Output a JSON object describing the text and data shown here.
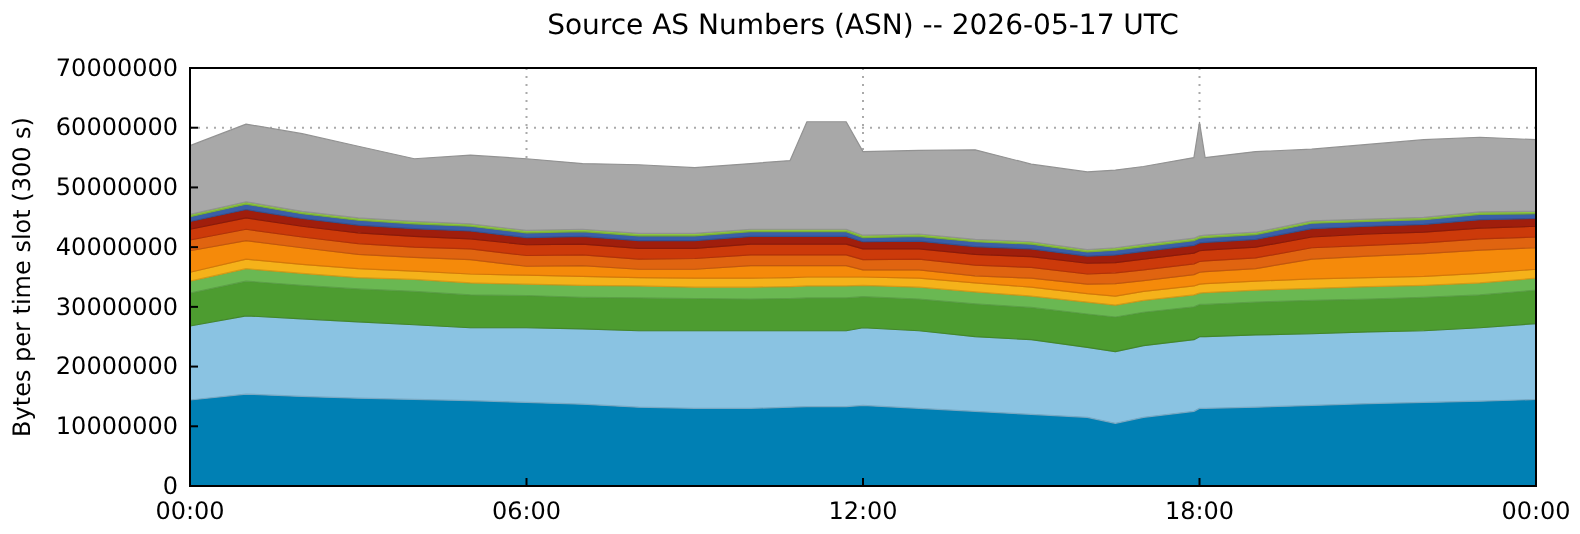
{
  "chart_data": {
    "type": "area",
    "stacked": true,
    "title": "Source AS Numbers (ASN) -- 2026-05-17 UTC",
    "ylabel": "Bytes per time slot (300 s)",
    "x": [
      0,
      1,
      2,
      3,
      4,
      5,
      6,
      7,
      8,
      9,
      10,
      10.7,
      11,
      11.7,
      12,
      13,
      14,
      15,
      16,
      16.5,
      17,
      17.9,
      18,
      18.1,
      19,
      20,
      21,
      22,
      23,
      24
    ],
    "xlim": [
      0,
      24
    ],
    "xticks": [
      {
        "value": 0,
        "label": "00:00"
      },
      {
        "value": 6,
        "label": "06:00"
      },
      {
        "value": 12,
        "label": "12:00"
      },
      {
        "value": 18,
        "label": "18:00"
      },
      {
        "value": 24,
        "label": "00:00"
      }
    ],
    "ylim": [
      0,
      70000000
    ],
    "yticks": [
      0,
      10000000,
      20000000,
      30000000,
      40000000,
      50000000,
      60000000,
      70000000
    ],
    "grid": true,
    "series": [
      {
        "color": "#0080b4",
        "values": [
          14400000.0,
          15400000.0,
          15000000.0,
          14700000.0,
          14500000.0,
          14300000.0,
          14000000.0,
          13700000.0,
          13200000.0,
          13000000.0,
          13000000.0,
          13200000.0,
          13300000.0,
          13300000.0,
          13500000.0,
          13000000.0,
          12500000.0,
          12000000.0,
          11500000.0,
          10500000.0,
          11500000.0,
          12500000.0,
          13000000.0,
          13000000.0,
          13200000.0,
          13500000.0,
          13800000.0,
          14000000.0,
          14200000.0,
          14500000.0
        ]
      },
      {
        "color": "#8ac3e2",
        "values": [
          12400000.0,
          13100000.0,
          13000000.0,
          12800000.0,
          12500000.0,
          12200000.0,
          12500000.0,
          12600000.0,
          12800000.0,
          13000000.0,
          13000000.0,
          12800000.0,
          12700000.0,
          12700000.0,
          13000000.0,
          13000000.0,
          12500000.0,
          12500000.0,
          11700000.0,
          12000000.0,
          12000000.0,
          12000000.0,
          12000000.0,
          12000000.0,
          12100000.0,
          12000000.0,
          12000000.0,
          12000000.0,
          12300000.0,
          12700000.0
        ]
      },
      {
        "color": "#4d9c30",
        "values": [
          5500000.0,
          5800000.0,
          5600000.0,
          5500000.0,
          5600000.0,
          5500000.0,
          5400000.0,
          5300000.0,
          5500000.0,
          5400000.0,
          5300000.0,
          5400000.0,
          5500000.0,
          5500000.0,
          5200000.0,
          5300000.0,
          5500000.0,
          5400000.0,
          5600000.0,
          5800000.0,
          5600000.0,
          5500000.0,
          5400000.0,
          5400000.0,
          5500000.0,
          5600000.0,
          5500000.0,
          5600000.0,
          5500000.0,
          5600000.0
        ]
      },
      {
        "color": "#6ab852",
        "values": [
          2000000.0,
          2100000.0,
          2000000.0,
          1900000.0,
          2000000.0,
          2000000.0,
          1900000.0,
          2000000.0,
          2000000.0,
          1900000.0,
          2000000.0,
          2000000.0,
          2000000.0,
          2000000.0,
          1900000.0,
          2000000.0,
          2000000.0,
          1900000.0,
          2000000.0,
          2000000.0,
          2000000.0,
          2000000.0,
          1900000.0,
          2000000.0,
          2000000.0,
          2000000.0,
          2100000.0,
          2000000.0,
          2000000.0,
          2000000.0
        ]
      },
      {
        "color": "#f5b21a",
        "values": [
          1500000.0,
          1600000.0,
          1500000.0,
          1500000.0,
          1400000.0,
          1500000.0,
          1500000.0,
          1500000.0,
          1400000.0,
          1500000.0,
          1500000.0,
          1500000.0,
          1500000.0,
          1500000.0,
          1400000.0,
          1500000.0,
          1500000.0,
          1500000.0,
          1400000.0,
          1500000.0,
          1500000.0,
          1500000.0,
          1500000.0,
          1500000.0,
          1500000.0,
          1600000.0,
          1500000.0,
          1500000.0,
          1600000.0,
          1500000.0
        ]
      },
      {
        "color": "#f58a0a",
        "values": [
          3600000.0,
          3100000.0,
          2800000.0,
          2400000.0,
          2300000.0,
          2400000.0,
          1500000.0,
          1800000.0,
          1400000.0,
          1500000.0,
          2100000.0,
          2000000.0,
          1900000.0,
          1900000.0,
          1200000.0,
          1400000.0,
          1200000.0,
          1500000.0,
          1600000.0,
          2100000.0,
          1800000.0,
          1900000.0,
          2000000.0,
          2000000.0,
          2100000.0,
          3300000.0,
          3600000.0,
          3800000.0,
          3900000.0,
          3600000.0
        ]
      },
      {
        "color": "#e06410",
        "values": [
          1800000.0,
          1900000.0,
          1800000.0,
          1800000.0,
          1700000.0,
          1800000.0,
          1800000.0,
          1800000.0,
          1700000.0,
          1800000.0,
          1800000.0,
          1800000.0,
          1800000.0,
          1800000.0,
          1700000.0,
          1800000.0,
          1800000.0,
          1800000.0,
          1700000.0,
          1800000.0,
          1800000.0,
          1800000.0,
          1800000.0,
          1800000.0,
          1800000.0,
          1900000.0,
          1800000.0,
          1800000.0,
          1900000.0,
          1800000.0
        ]
      },
      {
        "color": "#cc3a0a",
        "values": [
          1800000.0,
          1900000.0,
          1800000.0,
          1800000.0,
          1800000.0,
          1700000.0,
          1800000.0,
          1800000.0,
          1800000.0,
          1700000.0,
          1800000.0,
          1800000.0,
          1800000.0,
          1800000.0,
          1800000.0,
          1700000.0,
          1800000.0,
          1800000.0,
          1800000.0,
          1700000.0,
          1800000.0,
          1800000.0,
          1800000.0,
          1800000.0,
          1800000.0,
          1800000.0,
          1900000.0,
          1800000.0,
          1800000.0,
          1800000.0
        ]
      },
      {
        "color": "#a01e0c",
        "values": [
          1300000.0,
          1400000.0,
          1300000.0,
          1300000.0,
          1300000.0,
          1300000.0,
          1200000.0,
          1300000.0,
          1300000.0,
          1300000.0,
          1300000.0,
          1300000.0,
          1300000.0,
          1300000.0,
          1200000.0,
          1300000.0,
          1300000.0,
          1300000.0,
          1200000.0,
          1300000.0,
          1300000.0,
          1300000.0,
          1300000.0,
          1300000.0,
          1300000.0,
          1400000.0,
          1300000.0,
          1300000.0,
          1400000.0,
          1300000.0
        ]
      },
      {
        "color": "#3a5fa8",
        "values": [
          800000.0,
          900000.0,
          800000.0,
          800000.0,
          800000.0,
          800000.0,
          800000.0,
          800000.0,
          800000.0,
          800000.0,
          800000.0,
          800000.0,
          800000.0,
          800000.0,
          700000.0,
          800000.0,
          800000.0,
          800000.0,
          700000.0,
          800000.0,
          800000.0,
          800000.0,
          800000.0,
          800000.0,
          800000.0,
          900000.0,
          800000.0,
          800000.0,
          900000.0,
          800000.0
        ]
      },
      {
        "color": "#8cc63f",
        "values": [
          400000.0,
          400000.0,
          400000.0,
          400000.0,
          400000.0,
          400000.0,
          400000.0,
          400000.0,
          400000.0,
          400000.0,
          400000.0,
          400000.0,
          400000.0,
          400000.0,
          400000.0,
          400000.0,
          400000.0,
          400000.0,
          400000.0,
          400000.0,
          400000.0,
          400000.0,
          400000.0,
          400000.0,
          400000.0,
          400000.0,
          400000.0,
          400000.0,
          400000.0,
          400000.0
        ]
      },
      {
        "color": "#a8a8a8",
        "values": [
          11500000.0,
          13000000.0,
          13000000.0,
          12000000.0,
          10500000.0,
          11500000.0,
          12000000.0,
          11000000.0,
          11500000.0,
          11000000.0,
          11000000.0,
          11500000.0,
          18000000.0,
          18000000.0,
          14000000.0,
          14000000.0,
          15000000.0,
          13000000.0,
          13000000.0,
          13000000.0,
          13000000.0,
          13500000.0,
          19000000.0,
          13000000.0,
          13500000.0,
          12000000.0,
          12500000.0,
          13000000.0,
          12500000.0,
          12000000.0
        ]
      }
    ]
  }
}
